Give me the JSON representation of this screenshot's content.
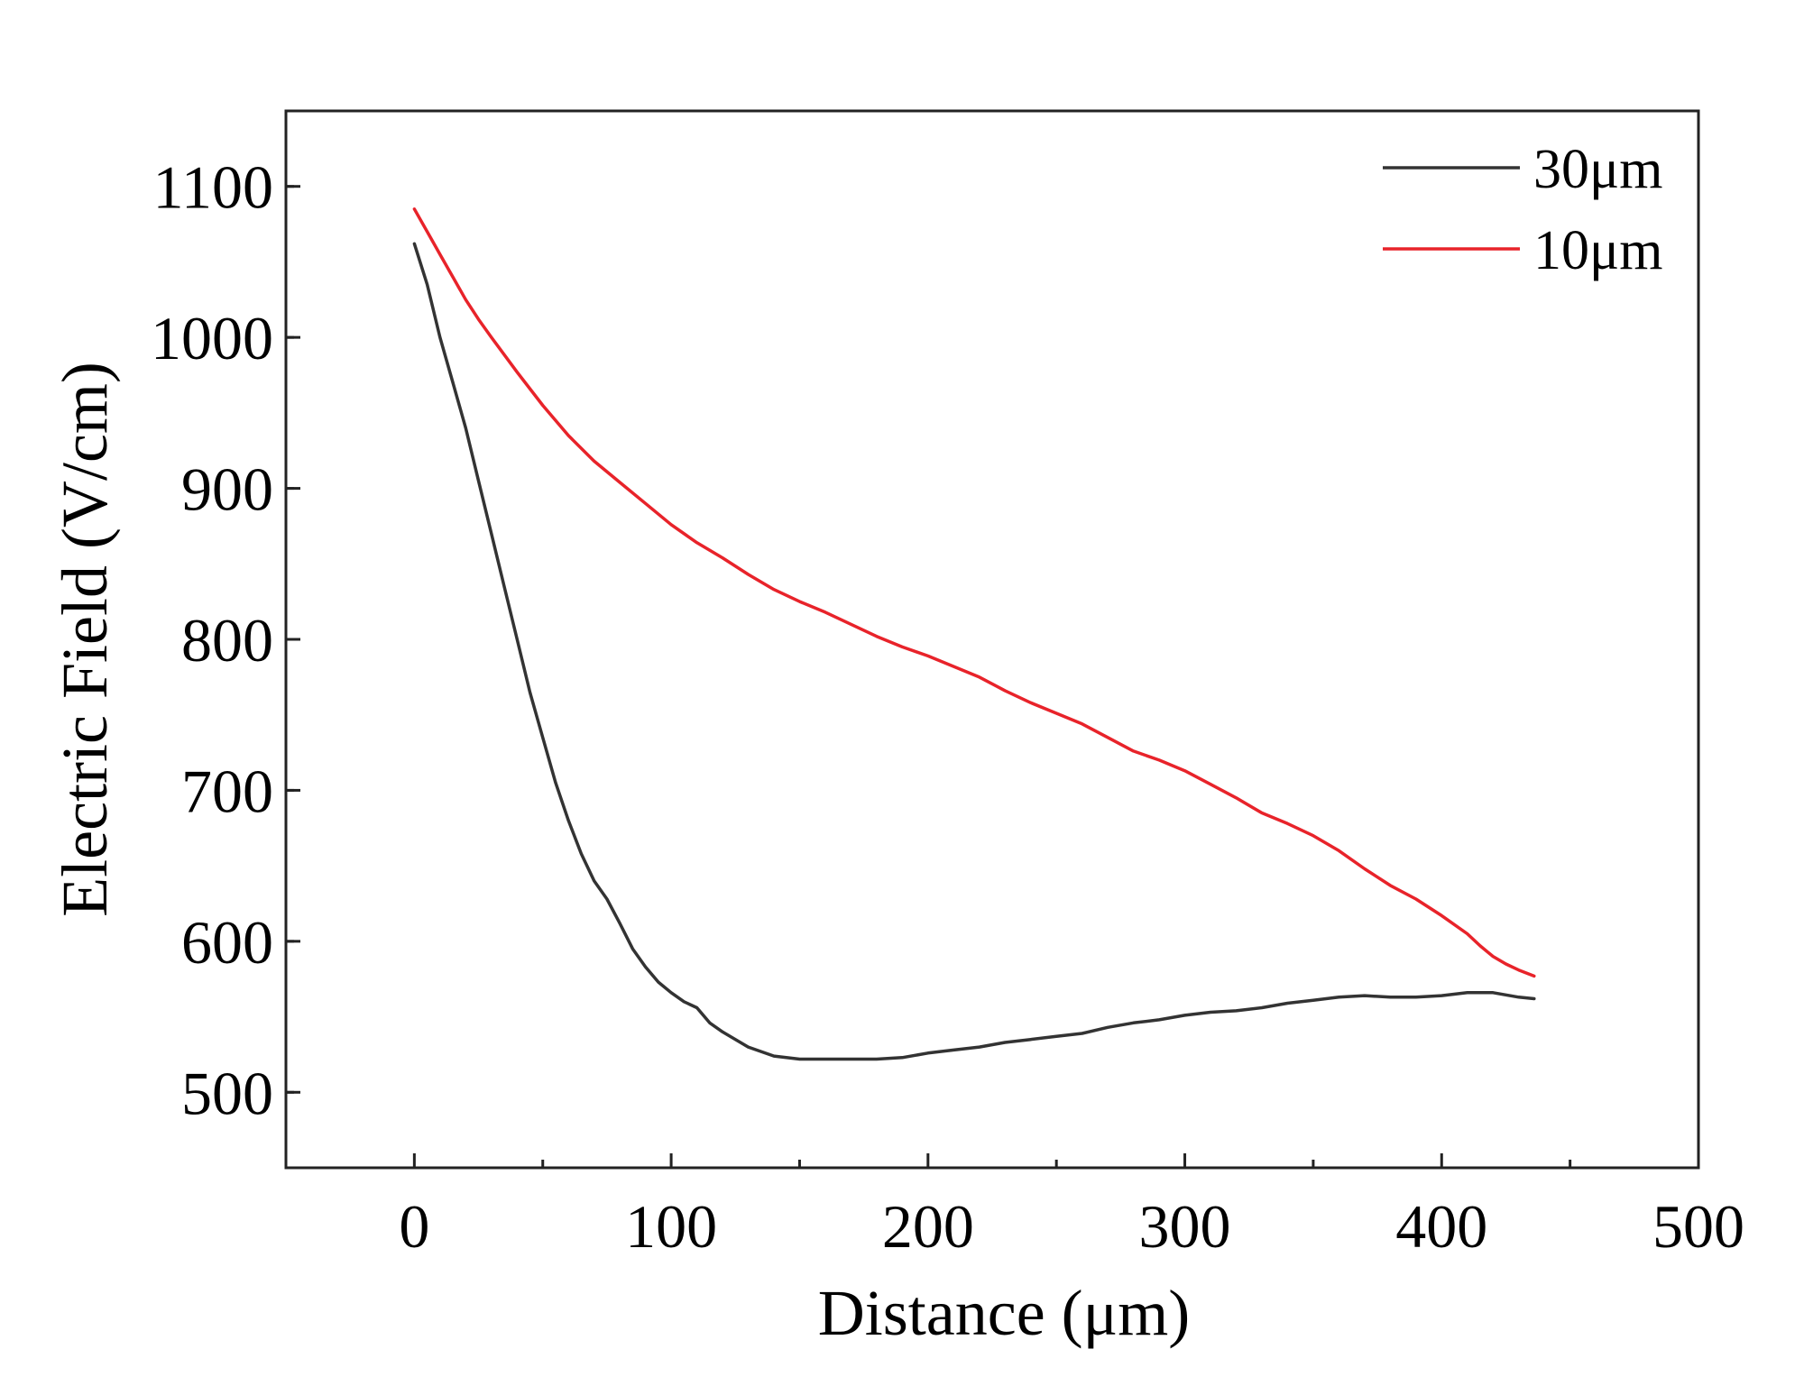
{
  "chart_data": {
    "type": "line",
    "title": "",
    "xlabel": "Distance (μm)",
    "ylabel": "Electric Field (V/cm)",
    "xlim": [
      -50,
      500
    ],
    "ylim": [
      450,
      1150
    ],
    "xticks": [
      0,
      100,
      200,
      300,
      400,
      500
    ],
    "yticks": [
      500,
      600,
      700,
      800,
      900,
      1000,
      1100
    ],
    "legend_position": "top-right",
    "series": [
      {
        "name": "30μm",
        "color": "#333333",
        "points": [
          [
            0,
            1062
          ],
          [
            5,
            1035
          ],
          [
            10,
            1000
          ],
          [
            15,
            970
          ],
          [
            20,
            940
          ],
          [
            25,
            905
          ],
          [
            30,
            870
          ],
          [
            35,
            835
          ],
          [
            40,
            800
          ],
          [
            45,
            765
          ],
          [
            50,
            735
          ],
          [
            55,
            705
          ],
          [
            60,
            680
          ],
          [
            65,
            658
          ],
          [
            70,
            640
          ],
          [
            75,
            628
          ],
          [
            80,
            612
          ],
          [
            85,
            595
          ],
          [
            90,
            583
          ],
          [
            95,
            573
          ],
          [
            100,
            566
          ],
          [
            105,
            560
          ],
          [
            110,
            556
          ],
          [
            115,
            546
          ],
          [
            120,
            540
          ],
          [
            130,
            530
          ],
          [
            140,
            524
          ],
          [
            150,
            522
          ],
          [
            160,
            522
          ],
          [
            170,
            522
          ],
          [
            180,
            522
          ],
          [
            190,
            523
          ],
          [
            200,
            526
          ],
          [
            210,
            528
          ],
          [
            220,
            530
          ],
          [
            230,
            533
          ],
          [
            240,
            535
          ],
          [
            250,
            537
          ],
          [
            260,
            539
          ],
          [
            270,
            543
          ],
          [
            280,
            546
          ],
          [
            290,
            548
          ],
          [
            300,
            551
          ],
          [
            310,
            553
          ],
          [
            320,
            554
          ],
          [
            330,
            556
          ],
          [
            340,
            559
          ],
          [
            350,
            561
          ],
          [
            360,
            563
          ],
          [
            370,
            564
          ],
          [
            380,
            563
          ],
          [
            390,
            563
          ],
          [
            400,
            564
          ],
          [
            410,
            566
          ],
          [
            420,
            566
          ],
          [
            430,
            563
          ],
          [
            436,
            562
          ]
        ]
      },
      {
        "name": "10μm",
        "color": "#e8232a",
        "points": [
          [
            0,
            1085
          ],
          [
            5,
            1070
          ],
          [
            10,
            1055
          ],
          [
            15,
            1040
          ],
          [
            20,
            1025
          ],
          [
            25,
            1012
          ],
          [
            30,
            1000
          ],
          [
            40,
            977
          ],
          [
            50,
            955
          ],
          [
            60,
            935
          ],
          [
            70,
            918
          ],
          [
            80,
            904
          ],
          [
            90,
            890
          ],
          [
            100,
            876
          ],
          [
            110,
            864
          ],
          [
            120,
            854
          ],
          [
            130,
            843
          ],
          [
            140,
            833
          ],
          [
            150,
            825
          ],
          [
            160,
            818
          ],
          [
            170,
            810
          ],
          [
            180,
            802
          ],
          [
            190,
            795
          ],
          [
            200,
            789
          ],
          [
            210,
            782
          ],
          [
            220,
            775
          ],
          [
            230,
            766
          ],
          [
            240,
            758
          ],
          [
            250,
            751
          ],
          [
            260,
            744
          ],
          [
            270,
            735
          ],
          [
            280,
            726
          ],
          [
            290,
            720
          ],
          [
            300,
            713
          ],
          [
            310,
            704
          ],
          [
            320,
            695
          ],
          [
            330,
            685
          ],
          [
            340,
            678
          ],
          [
            350,
            670
          ],
          [
            360,
            660
          ],
          [
            370,
            648
          ],
          [
            380,
            637
          ],
          [
            390,
            628
          ],
          [
            400,
            617
          ],
          [
            410,
            605
          ],
          [
            415,
            597
          ],
          [
            420,
            590
          ],
          [
            425,
            585
          ],
          [
            430,
            581
          ],
          [
            436,
            577
          ]
        ]
      }
    ]
  }
}
